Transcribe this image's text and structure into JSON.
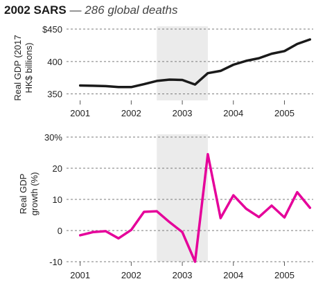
{
  "header": {
    "title": "2002 SARS",
    "separator": "—",
    "subtitle": "286 global deaths"
  },
  "chart_data": [
    {
      "type": "line",
      "ylabel_lines": [
        "Real GDP (2017",
        "HK$ billions)"
      ],
      "ylim": [
        340,
        450
      ],
      "yticks": [
        350,
        400,
        450
      ],
      "ytick_labels": [
        "350",
        "400",
        "$450"
      ],
      "xlim": [
        2000.95,
        2005.55
      ],
      "xticks": [
        2001,
        2002,
        2003,
        2004,
        2005
      ],
      "xtick_labels": [
        "2001",
        "2002",
        "2003",
        "2004",
        "2005"
      ],
      "grid": "horizontal-dashed",
      "highlight_x": [
        2002.5,
        2003.5
      ],
      "series": [
        {
          "color": "#1a1a1a",
          "x": [
            2001.0,
            2001.25,
            2001.5,
            2001.75,
            2002.0,
            2002.25,
            2002.5,
            2002.75,
            2003.0,
            2003.25,
            2003.5,
            2003.75,
            2004.0,
            2004.25,
            2004.5,
            2004.75,
            2005.0,
            2005.25,
            2005.5
          ],
          "values": [
            363,
            362.5,
            362,
            360.5,
            360.5,
            365,
            370,
            372,
            371.5,
            364.5,
            382,
            385.5,
            395,
            401,
            405,
            412,
            416,
            427,
            434
          ]
        }
      ]
    },
    {
      "type": "line",
      "ylabel_lines": [
        "Real GDP",
        "growth (%)"
      ],
      "ylim": [
        -10,
        30
      ],
      "yticks": [
        -10,
        0,
        10,
        20,
        30
      ],
      "ytick_labels": [
        "-10",
        "0",
        "10",
        "20",
        "30%"
      ],
      "xlim": [
        2000.95,
        2005.55
      ],
      "xticks": [
        2001,
        2002,
        2003,
        2004,
        2005
      ],
      "xtick_labels": [
        "2001",
        "2002",
        "2003",
        "2004",
        "2005"
      ],
      "grid": "horizontal-dashed",
      "highlight_x": [
        2002.5,
        2003.5
      ],
      "series": [
        {
          "color": "#e5009a",
          "x": [
            2001.0,
            2001.25,
            2001.5,
            2001.75,
            2002.0,
            2002.25,
            2002.5,
            2002.75,
            2003.0,
            2003.25,
            2003.5,
            2003.75,
            2004.0,
            2004.25,
            2004.5,
            2004.75,
            2005.0,
            2005.25,
            2005.5
          ],
          "values": [
            -1.5,
            -0.5,
            -0.2,
            -2.5,
            0.2,
            6,
            6.2,
            2.7,
            -0.5,
            -10,
            24.5,
            4,
            11.3,
            7,
            4.3,
            8,
            4.2,
            12.3,
            7.3
          ]
        }
      ]
    }
  ]
}
